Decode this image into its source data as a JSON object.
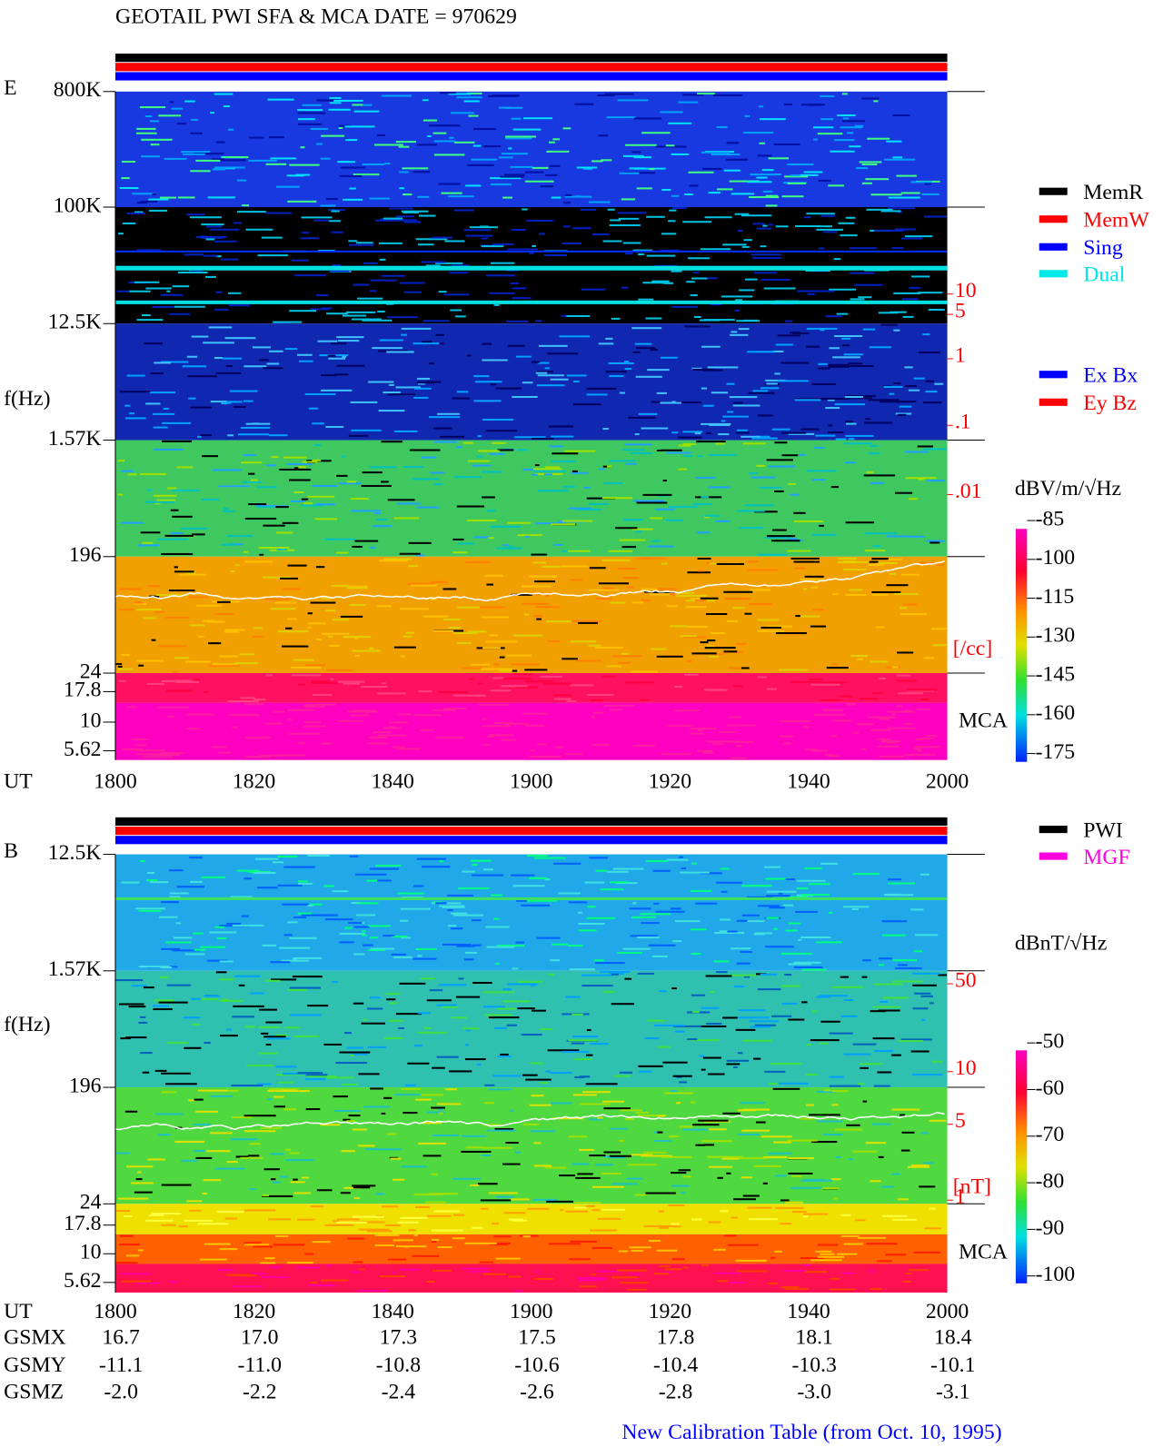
{
  "title": "GEOTAIL  PWI SFA & MCA   DATE = 970629",
  "panels": [
    {
      "label": "E",
      "axis_label": "f(Hz)",
      "freq_ticks": [
        "800K",
        "100K",
        "12.5K",
        "1.57K",
        "196",
        "24",
        "17.8",
        "10",
        "5.62"
      ],
      "density_ticks": [
        "10",
        "5",
        "1",
        ".1",
        ".01"
      ],
      "density_unit": "[/cc]",
      "mca_label": "MCA",
      "time_label": "UT",
      "time_ticks": [
        "1800",
        "1820",
        "1840",
        "1900",
        "1920",
        "1940",
        "2000"
      ],
      "legend": [
        {
          "name": "MemR",
          "color": "#000000"
        },
        {
          "name": "MemW",
          "color": "#ff0000"
        },
        {
          "name": "Sing",
          "color": "#0000ff"
        },
        {
          "name": "Dual",
          "color": "#00e8e8"
        }
      ],
      "legend2": [
        {
          "name": "Ex Bx",
          "color": "#0000ff"
        },
        {
          "name": "Ey Bz",
          "color": "#ff0000"
        }
      ],
      "colorbar": {
        "unit": "dBV/m/√Hz",
        "ticks": [
          -85,
          -100,
          -115,
          -130,
          -145,
          -160,
          -175
        ]
      }
    },
    {
      "label": "B",
      "axis_label": "f(Hz)",
      "freq_ticks": [
        "12.5K",
        "1.57K",
        "196",
        "24",
        "17.8",
        "10",
        "5.62"
      ],
      "density_ticks": [
        "50",
        "10",
        "5",
        "1"
      ],
      "density_unit": "[nT]",
      "mca_label": "MCA",
      "time_label": "UT",
      "time_ticks": [
        "1800",
        "1820",
        "1840",
        "1900",
        "1920",
        "1940",
        "2000"
      ],
      "legend": [
        {
          "name": "PWI",
          "color": "#000000"
        },
        {
          "name": "MGF",
          "color": "#ff00e0"
        }
      ],
      "legend2": [],
      "colorbar": {
        "unit": "dBnT/√Hz",
        "ticks": [
          -50,
          -60,
          -70,
          -80,
          -90,
          -100
        ]
      }
    }
  ],
  "orbit": [
    {
      "name": "GSMX",
      "values": [
        "16.7",
        "17.0",
        "17.3",
        "17.5",
        "17.8",
        "18.1",
        "18.4"
      ]
    },
    {
      "name": "GSMY",
      "values": [
        "-11.1",
        "-11.0",
        "-10.8",
        "-10.6",
        "-10.4",
        "-10.3",
        "-10.1"
      ]
    },
    {
      "name": "GSMZ",
      "values": [
        "-2.0",
        "-2.2",
        "-2.4",
        "-2.6",
        "-2.8",
        "-3.0",
        "-3.1"
      ]
    }
  ],
  "footer": "New Calibration Table (from Oct. 10, 1995)"
}
